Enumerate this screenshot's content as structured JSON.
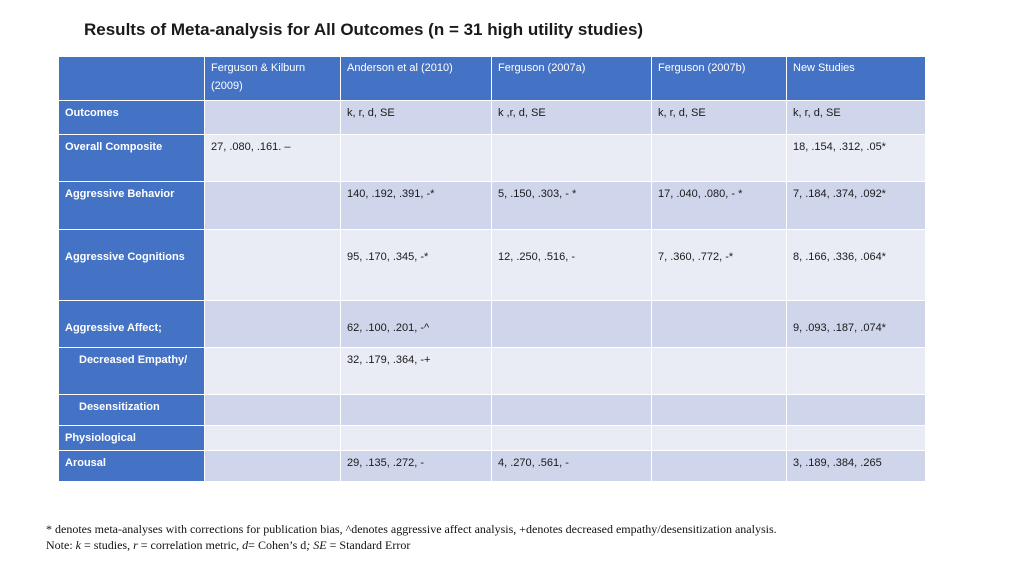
{
  "title": "Results of Meta-analysis for All Outcomes (n = 31 high utility studies)",
  "table": {
    "headers": [
      "",
      "Ferguson & Kilburn (2009)",
      "Anderson et al (2010)",
      "Ferguson (2007a)",
      "Ferguson (2007b)",
      "New Studies"
    ],
    "rows": [
      {
        "label": "Outcomes",
        "cells": [
          "",
          "k, r, d, SE",
          "k ,r, d, SE",
          "k, r, d, SE",
          "k, r, d, SE"
        ]
      },
      {
        "label": "Overall Composite",
        "cells": [
          "27, .080, .161. –",
          "",
          "",
          "",
          "18, .154, .312, .05*"
        ]
      },
      {
        "label": "Aggressive Behavior",
        "cells": [
          "",
          "140, .192, .391, -*",
          "5, .150, .303, - *",
          "17, .040, .080, - *",
          "7, .184, .374, .092*"
        ]
      },
      {
        "label": "Aggressive Cognitions",
        "cells": [
          "",
          "95, .170, .345, -*",
          "12, .250, .516, -",
          "7, .360, .772, -*",
          "8, .166, .336, .064*"
        ]
      },
      {
        "label": "Aggressive Affect;",
        "cells": [
          "",
          "62, .100, .201, -^",
          "",
          "",
          "9, .093, .187, .074*"
        ]
      },
      {
        "label": "Decreased Empathy/",
        "cells": [
          "",
          "32, .179, .364, -+",
          "",
          "",
          ""
        ]
      },
      {
        "label": "Desensitization",
        "cells": [
          "",
          "",
          "",
          "",
          ""
        ]
      },
      {
        "label": "Physiological",
        "cells": [
          "",
          "",
          "",
          "",
          ""
        ]
      },
      {
        "label": "Arousal",
        "cells": [
          "",
          "29, .135, .272, -",
          "4, .270, .561, -",
          "",
          "3, .189, .384, .265"
        ]
      }
    ]
  },
  "notes": {
    "line1": "* denotes meta-analyses with corrections for publication bias, ^denotes aggressive affect analysis, +denotes decreased empathy/desensitization analysis.",
    "prefix": "Note:",
    "k": "k",
    "k_def": " = studies, ",
    "r": "r",
    "r_def": " = correlation metric, ",
    "d": "d",
    "d_def": "= Cohen’s d",
    "sep": "; ",
    "se": "SE",
    "se_def": " = Standard Error"
  }
}
